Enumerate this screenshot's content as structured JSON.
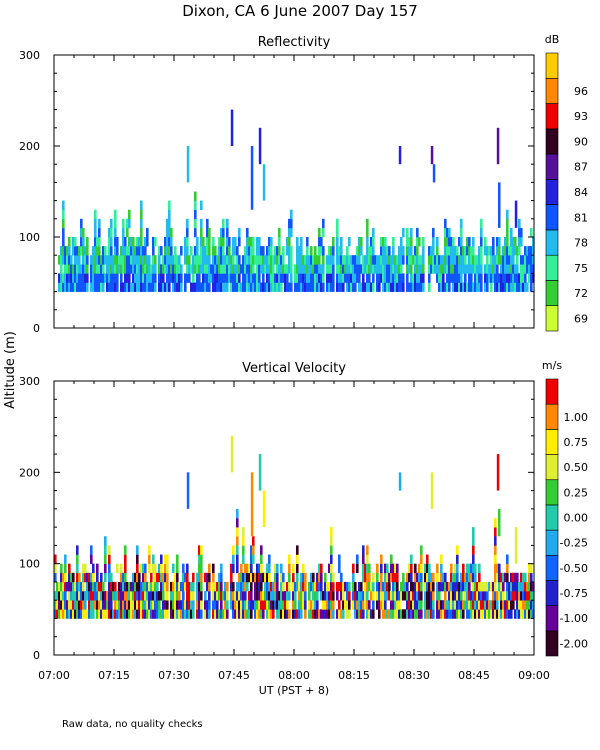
{
  "page": {
    "title": "Dixon, CA   6 June 2007   Day 157",
    "y_axis_label": "Altitude (m)",
    "x_axis_label": "UT   (PST + 8)",
    "footnote": "Raw data, no quality checks"
  },
  "chart_data": [
    {
      "type": "heatmap",
      "title": "Reflectivity",
      "xlabel": "UT   (PST + 8)",
      "ylabel": "Altitude (m)",
      "x_ticks": [
        "07:00",
        "07:15",
        "07:30",
        "07:45",
        "08:00",
        "08:15",
        "08:30",
        "08:45",
        "09:00"
      ],
      "x_range_minutes": [
        0,
        120
      ],
      "y_ticks": [
        "0",
        "100",
        "200",
        "300"
      ],
      "ylim": [
        0,
        300
      ],
      "data_altitude_range": [
        40,
        140
      ],
      "colorbar": {
        "unit": "dB",
        "labels": [
          "69",
          "72",
          "75",
          "78",
          "81",
          "84",
          "87",
          "90",
          "93",
          "96"
        ],
        "range": [
          68,
          98
        ],
        "colors": [
          "#ccff33",
          "#33cc33",
          "#33ee99",
          "#22bbee",
          "#1155ff",
          "#2222dd",
          "#551199",
          "#330022",
          "#ee0000",
          "#ff8800",
          "#ffcc00"
        ]
      },
      "isolated_echoes": [
        {
          "time_min": 33.5,
          "alt": [
            160,
            200
          ],
          "class": 3
        },
        {
          "time_min": 44.5,
          "alt": [
            200,
            240
          ],
          "class": 5
        },
        {
          "time_min": 49.5,
          "alt": [
            130,
            200
          ],
          "class": 4
        },
        {
          "time_min": 51.5,
          "alt": [
            180,
            220
          ],
          "class": 5
        },
        {
          "time_min": 52.5,
          "alt": [
            140,
            180
          ],
          "class": 3
        },
        {
          "time_min": 86.5,
          "alt": [
            180,
            200
          ],
          "class": 5
        },
        {
          "time_min": 94.5,
          "alt": [
            180,
            200
          ],
          "class": 6
        },
        {
          "time_min": 95.0,
          "alt": [
            160,
            180
          ],
          "class": 4
        },
        {
          "time_min": 111.0,
          "alt": [
            180,
            220
          ],
          "class": 6
        },
        {
          "time_min": 111.3,
          "alt": [
            110,
            160
          ],
          "class": 4
        },
        {
          "time_min": 115.5,
          "alt": [
            110,
            140
          ],
          "class": 5
        }
      ]
    },
    {
      "type": "heatmap",
      "title": "Vertical Velocity",
      "xlabel": "UT   (PST + 8)",
      "ylabel": "Altitude (m)",
      "x_ticks": [
        "07:00",
        "07:15",
        "07:30",
        "07:45",
        "08:00",
        "08:15",
        "08:30",
        "08:45",
        "09:00"
      ],
      "x_range_minutes": [
        0,
        120
      ],
      "y_ticks": [
        "0",
        "100",
        "200",
        "300"
      ],
      "ylim": [
        0,
        300
      ],
      "data_altitude_range": [
        40,
        140
      ],
      "colorbar": {
        "unit": "m/s",
        "labels": [
          "-2.00",
          "-1.00",
          "-0.75",
          "-0.50",
          "-0.25",
          "0.00",
          "0.25",
          "0.50",
          "0.75",
          "1.00"
        ],
        "range": [
          -2.25,
          1.25
        ],
        "colors": [
          "#330022",
          "#660099",
          "#2222cc",
          "#1166ff",
          "#22aaee",
          "#22ccaa",
          "#33cc33",
          "#ddee33",
          "#ffee00",
          "#ff8800",
          "#ee0000"
        ]
      },
      "isolated_echoes": [
        {
          "time_min": 33.5,
          "alt": [
            160,
            200
          ],
          "class": 3
        },
        {
          "time_min": 44.5,
          "alt": [
            200,
            240
          ],
          "class": 7
        },
        {
          "time_min": 49.5,
          "alt": [
            130,
            200
          ],
          "class": 9
        },
        {
          "time_min": 51.5,
          "alt": [
            180,
            220
          ],
          "class": 5
        },
        {
          "time_min": 52.5,
          "alt": [
            140,
            180
          ],
          "class": 8
        },
        {
          "time_min": 86.5,
          "alt": [
            180,
            200
          ],
          "class": 4
        },
        {
          "time_min": 94.5,
          "alt": [
            160,
            200
          ],
          "class": 7
        },
        {
          "time_min": 111.0,
          "alt": [
            180,
            220
          ],
          "class": 10
        },
        {
          "time_min": 111.3,
          "alt": [
            130,
            160
          ],
          "class": 6
        },
        {
          "time_min": 115.5,
          "alt": [
            100,
            140
          ],
          "class": 7
        }
      ]
    }
  ]
}
